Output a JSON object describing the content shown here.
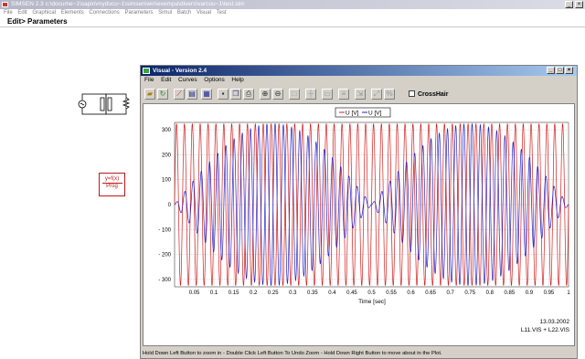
{
  "app": {
    "title": "SIMSEN 2.3   c:\\docume~1\\sapin\\mydocu~1\\simsen\\win\\exempa\\divers\\varcou~1\\test.stm",
    "menu": [
      "File",
      "Edit",
      "Graphical",
      "Elements",
      "Connections",
      "Parameters",
      "Simul",
      "Batch",
      "Visual",
      "Test"
    ],
    "breadcrumb": "Edit> Parameters",
    "window_buttons": [
      "_",
      "□",
      "×"
    ]
  },
  "diagram": {
    "prog_block": {
      "formula": "y=f(x)",
      "label": "Prog"
    }
  },
  "visual": {
    "title": "Visual - Version 2.4",
    "menu": [
      "File",
      "Edit",
      "Curves",
      "Options",
      "Help"
    ],
    "window_buttons": [
      "_",
      "□",
      "×"
    ],
    "crosshair_label": "CrossHair",
    "toolbar_icons": [
      "open-icon",
      "refresh-icon",
      "draw-icon",
      "zoom-window-icon",
      "layout-icon",
      "save-icon",
      "copy-icon",
      "print-icon",
      "zoom-in-icon",
      "zoom-out-icon",
      "grid-icon",
      "axis-icon",
      "scale-icon",
      "settings-icon",
      "export-icon"
    ],
    "status_text": "Hold Down Left Button to zoom in - Double Click Left Button To Undo Zoom - Hold Down Right Button to move about in the Plot."
  },
  "chart_data": {
    "type": "line",
    "legend": [
      "U [V]",
      "U [V]"
    ],
    "legend_placement": "top-center",
    "xlabel": "Time  [sec]",
    "ylabel": "",
    "xlim": [
      0,
      1
    ],
    "ylim": [
      -330,
      330
    ],
    "x_ticks": [
      "0.05",
      "0.1",
      "0.15",
      "0.2",
      "0.25",
      "0.3",
      "0.35",
      "0.4",
      "0.45",
      "0.5",
      "0.55",
      "0.6",
      "0.65",
      "0.7",
      "0.75",
      "0.8",
      "0.85",
      "0.9",
      "0.95",
      "1"
    ],
    "y_ticks": [
      "300",
      "200",
      "100",
      "0",
      "- 100",
      "- 200",
      "- 300"
    ],
    "grid": true,
    "date": "13.03.2002",
    "footer": "L11.VIS + L22.VIS",
    "series": [
      {
        "name": "U [V]",
        "color": "#d42020",
        "amplitude": 325,
        "frequency_hz": 50,
        "envelope": "constant"
      },
      {
        "name": "U [V]",
        "color": "#2222c8",
        "amplitude": 325,
        "frequency_hz": 48,
        "envelope": "beat",
        "beat_hz": 2
      }
    ]
  }
}
